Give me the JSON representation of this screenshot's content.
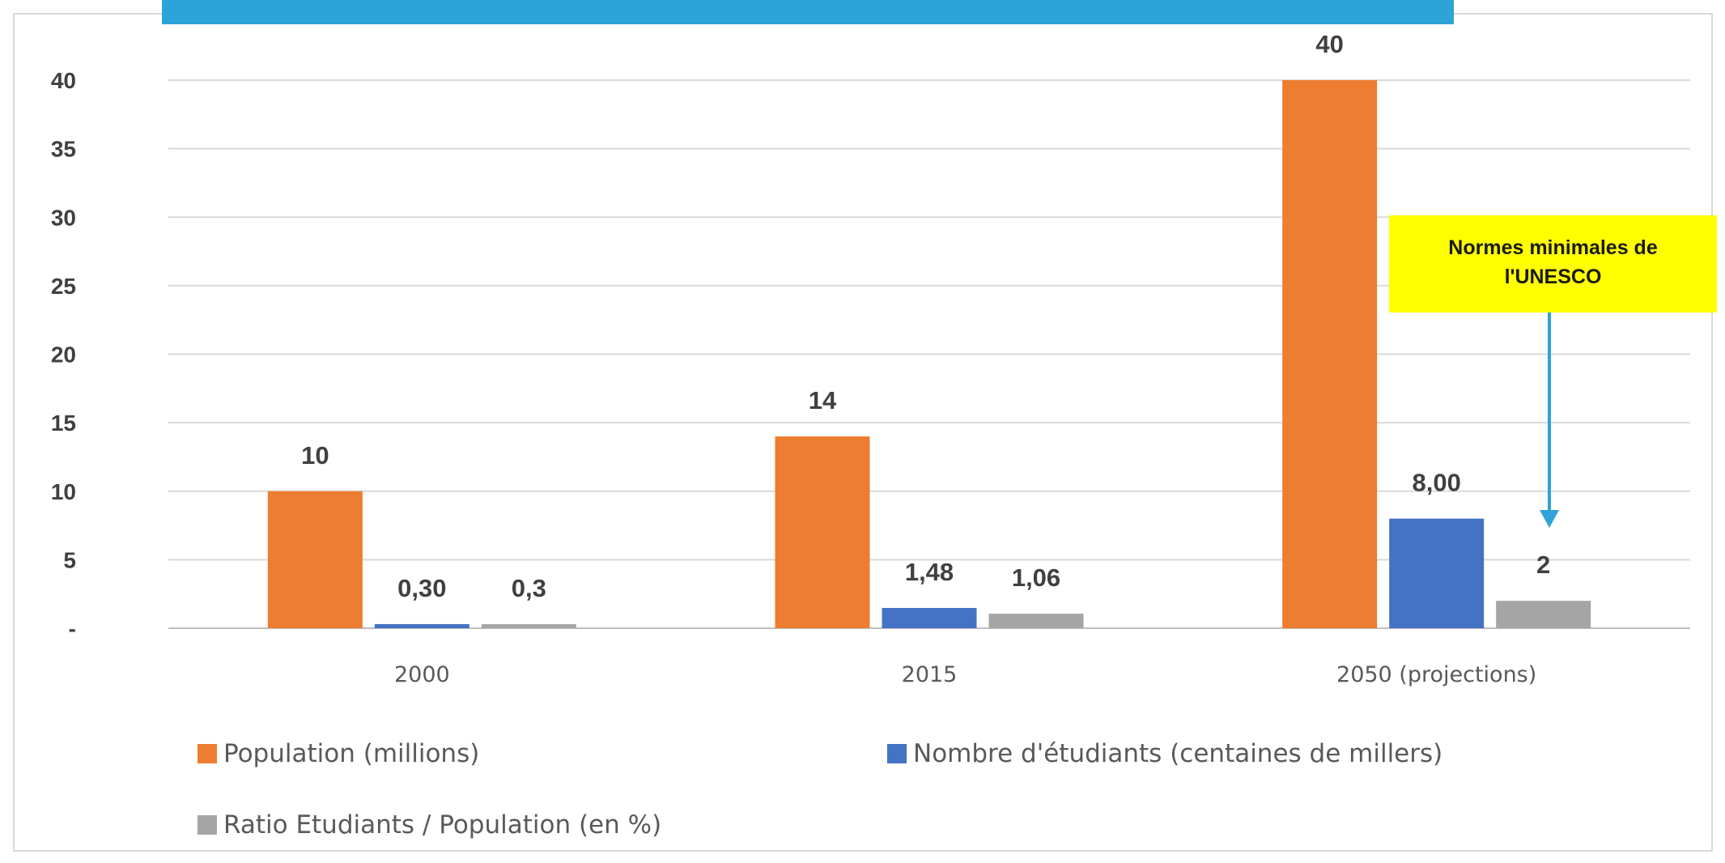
{
  "chart_data": {
    "type": "bar",
    "title": "",
    "categories": [
      "2000",
      "2015",
      "2050 (projections)"
    ],
    "series": [
      {
        "name": "Population (millions)",
        "color": "#ED7D31",
        "values": [
          10,
          14,
          40
        ],
        "labels": [
          "10",
          "14",
          "40"
        ]
      },
      {
        "name": "Nombre d'étudiants (centaines de millers)",
        "color": "#4472C4",
        "values": [
          0.3,
          1.48,
          8.0
        ],
        "labels": [
          "0,30",
          "1,48",
          "8,00"
        ]
      },
      {
        "name": "Ratio Etudiants / Population (en %)",
        "color": "#A5A5A5",
        "values": [
          0.3,
          1.06,
          2
        ],
        "labels": [
          "0,3",
          "1,06",
          "2"
        ]
      }
    ],
    "ylim": [
      0,
      40
    ],
    "yticks": [
      0,
      5,
      10,
      15,
      20,
      25,
      30,
      35,
      40
    ],
    "ytick_labels": [
      "-",
      "5",
      "10",
      "15",
      "20",
      "25",
      "30",
      "35",
      "40"
    ],
    "grid": true,
    "legend_position": "bottom",
    "annotation": {
      "lines": [
        "Normes minimales de",
        "l'UNESCO"
      ],
      "background": "#FFFF00",
      "arrow_color": "#2EA3D8",
      "points_to": "2050 (projections) - Ratio Etudiants / Population (en %)"
    }
  }
}
